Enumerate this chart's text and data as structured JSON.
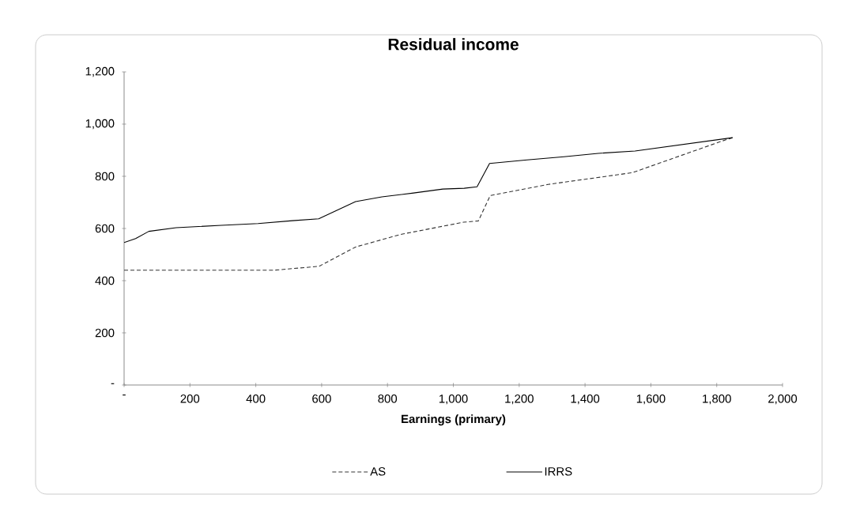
{
  "chart_data": {
    "type": "line",
    "title": "Residual income",
    "xlabel": "Earnings (primary)",
    "xlim": [
      0,
      2000
    ],
    "xticks": [
      {
        "value": 0,
        "label": "-"
      },
      {
        "value": 200,
        "label": "200"
      },
      {
        "value": 400,
        "label": "400"
      },
      {
        "value": 600,
        "label": "600"
      },
      {
        "value": 800,
        "label": "800"
      },
      {
        "value": 1000,
        "label": "1,000"
      },
      {
        "value": 1200,
        "label": "1,200"
      },
      {
        "value": 1400,
        "label": "1,400"
      },
      {
        "value": 1600,
        "label": "1,600"
      },
      {
        "value": 1800,
        "label": "1,800"
      },
      {
        "value": 2000,
        "label": "2,000"
      }
    ],
    "ylim": [
      0,
      1200
    ],
    "yticks": [
      {
        "value": 0,
        "label": "-"
      },
      {
        "value": 200,
        "label": "200"
      },
      {
        "value": 400,
        "label": "400"
      },
      {
        "value": 600,
        "label": "600"
      },
      {
        "value": 800,
        "label": "800"
      },
      {
        "value": 1000,
        "label": "1,000"
      },
      {
        "value": 1200,
        "label": "1,200"
      }
    ],
    "grid": false,
    "legend": "bottom",
    "series": [
      {
        "name": "AS",
        "color": "#333333",
        "line_style": "dashed",
        "x": [
          0,
          455,
          592,
          703,
          839,
          1031,
          1076,
          1112,
          1288,
          1448,
          1544,
          1816,
          1848
        ],
        "values": [
          440,
          440,
          455,
          529,
          577,
          624,
          629,
          726,
          769,
          797,
          814,
          935,
          948
        ]
      },
      {
        "name": "IRRS",
        "color": "#000000",
        "line_style": "solid",
        "x": [
          0,
          35,
          75,
          158,
          295,
          407,
          511,
          591,
          703,
          783,
          879,
          968,
          1033,
          1072,
          1110,
          1224,
          1336,
          1440,
          1552,
          1848
        ],
        "values": [
          546,
          561,
          589,
          603,
          612,
          619,
          630,
          637,
          703,
          721,
          736,
          751,
          754,
          760,
          849,
          863,
          875,
          888,
          897,
          948
        ]
      }
    ]
  }
}
